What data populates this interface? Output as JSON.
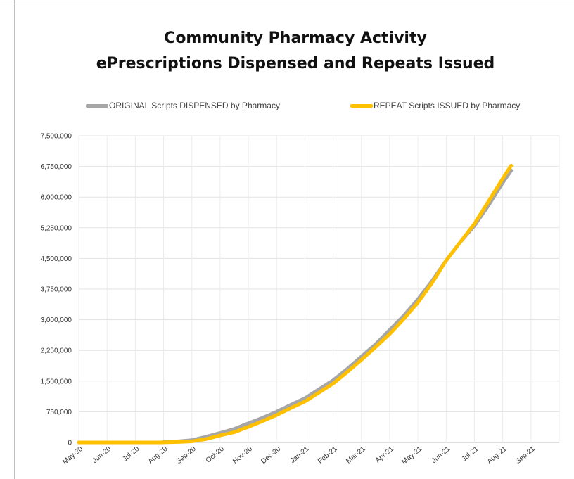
{
  "chart_data": {
    "type": "line",
    "title": "Community Pharmacy Activity",
    "subtitle": "ePrescriptions Dispensed and Repeats Issued",
    "xlabel": "",
    "ylabel": "",
    "ylim": [
      0,
      7500000
    ],
    "y_ticks": [
      0,
      750000,
      1500000,
      2250000,
      3000000,
      3750000,
      4500000,
      5250000,
      6000000,
      6750000,
      7500000
    ],
    "y_tick_labels": [
      "0",
      "750,000",
      "1,500,000",
      "2,250,000",
      "3,000,000",
      "3,750,000",
      "4,500,000",
      "5,250,000",
      "6,000,000",
      "6,750,000",
      "7,500,000"
    ],
    "categories": [
      "May-20",
      "Jun-20",
      "Jul-20",
      "Aug-20",
      "Sep-20",
      "Oct-20",
      "Nov-20",
      "Dec-20",
      "Jan-21",
      "Feb-21",
      "Mar-21",
      "Apr-21",
      "May-21",
      "Jun-21",
      "Jul-21",
      "Aug-21",
      "Sep-21"
    ],
    "legend_position": "top",
    "grid": true,
    "series": [
      {
        "name": "ORIGINAL Scripts DISPENSED by Pharmacy",
        "color": "#a6a6a6",
        "x": [
          0,
          1,
          2,
          2.9,
          3.1,
          3.5,
          4,
          4.5,
          5,
          5.5,
          6,
          6.5,
          7,
          7.5,
          8,
          8.5,
          9,
          9.5,
          10,
          10.5,
          11,
          11.5,
          12,
          12.5,
          13,
          13.5,
          14,
          14.5,
          15,
          15.3
        ],
        "values": [
          0,
          0,
          0,
          0,
          10000,
          25000,
          55000,
          140000,
          230000,
          330000,
          470000,
          600000,
          750000,
          920000,
          1080000,
          1300000,
          1520000,
          1800000,
          2100000,
          2400000,
          2750000,
          3100000,
          3500000,
          3950000,
          4450000,
          4900000,
          5300000,
          5800000,
          6350000,
          6650000
        ]
      },
      {
        "name": "REPEAT Scripts ISSUED by Pharmacy",
        "color": "#ffc000",
        "x": [
          0,
          1,
          2,
          2.9,
          3.1,
          3.5,
          4,
          4.5,
          5,
          5.5,
          6,
          6.5,
          7,
          7.5,
          8,
          8.5,
          9,
          9.5,
          10,
          10.5,
          11,
          11.5,
          12,
          12.5,
          13,
          13.5,
          14,
          14.5,
          15,
          15.3
        ],
        "values": [
          0,
          0,
          0,
          0,
          3000,
          10000,
          25000,
          80000,
          170000,
          250000,
          380000,
          520000,
          670000,
          840000,
          1000000,
          1220000,
          1440000,
          1720000,
          2020000,
          2330000,
          2650000,
          3020000,
          3420000,
          3900000,
          4450000,
          4900000,
          5350000,
          5900000,
          6450000,
          6770000
        ]
      }
    ]
  }
}
